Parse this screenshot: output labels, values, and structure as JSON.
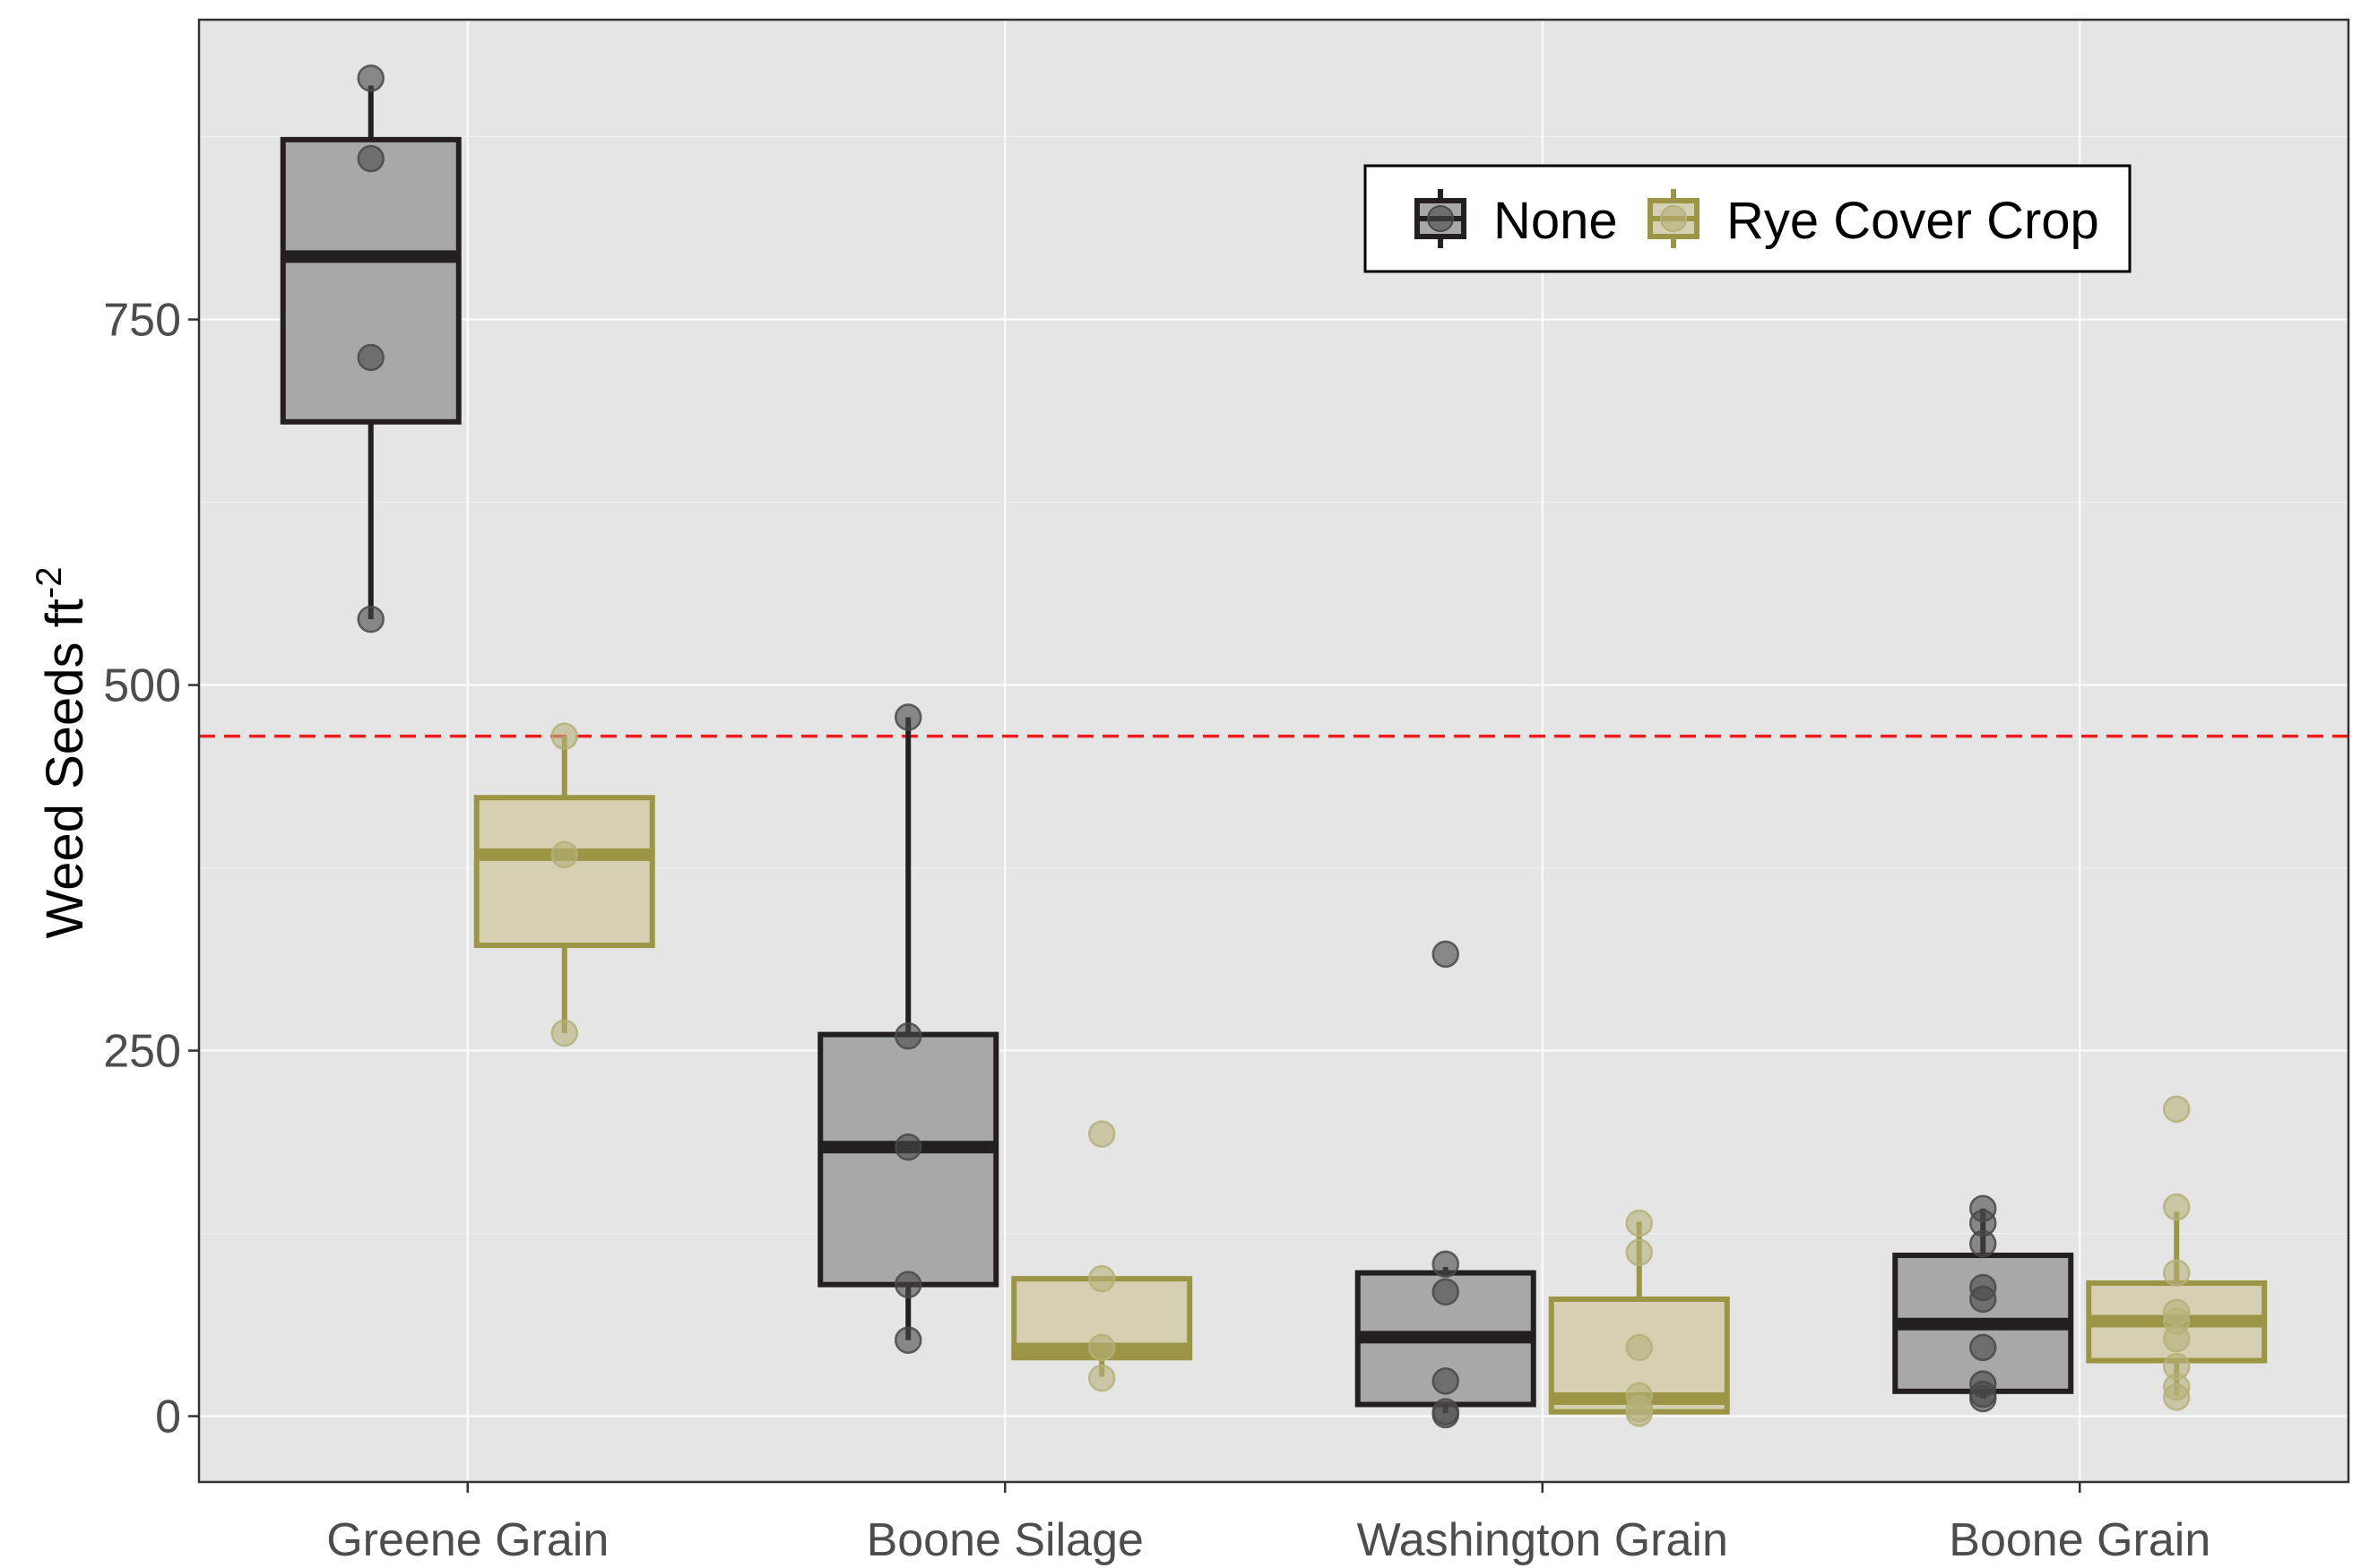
{
  "chart_data": {
    "type": "boxplot",
    "categories": [
      "Greene Grain",
      "Boone Silage",
      "Washington Grain",
      "Boone Grain"
    ],
    "ylabel": "Weed Seeds ft",
    "ylabel_superscript": "-2",
    "xlabel": "",
    "ylim": [
      -45,
      955
    ],
    "yticks": [
      0,
      250,
      500,
      750
    ],
    "reference_line": {
      "y": 465,
      "color": "#ee1c1c",
      "style": "dashed"
    },
    "legend": {
      "placement": "top-right",
      "entries": [
        "None",
        "Rye Cover Crop"
      ]
    },
    "background": "#e5e5e5",
    "grid": true,
    "series": [
      {
        "name": "None",
        "stroke": "#231f20",
        "fill": "#a9a8a8",
        "point_color": "#4a4748",
        "boxes": [
          {
            "category": "Greene Grain",
            "whisker_low": 545,
            "q1": 680,
            "median": 793,
            "q3": 873,
            "whisker_high": 910,
            "points": [
              915,
              860,
              724,
              545
            ]
          },
          {
            "category": "Boone Silage",
            "whisker_low": 52,
            "q1": 90,
            "median": 184,
            "q3": 261,
            "whisker_high": 478,
            "points": [
              478,
              260,
              184,
              90,
              52
            ]
          },
          {
            "category": "Washington Grain",
            "whisker_low": 2,
            "q1": 8,
            "median": 54,
            "q3": 98,
            "whisker_high": 102,
            "points": [
              316,
              104,
              85,
              24,
              3,
              1
            ]
          },
          {
            "category": "Boone Grain",
            "whisker_low": 12,
            "q1": 17,
            "median": 63,
            "q3": 110,
            "whisker_high": 142,
            "points": [
              142,
              132,
              118,
              88,
              80,
              47,
              22,
              15,
              12
            ]
          }
        ]
      },
      {
        "name": "Rye Cover Crop",
        "stroke": "#9c9545",
        "fill": "#d4d0b1",
        "point_color": "#b5b07a",
        "boxes": [
          {
            "category": "Greene Grain",
            "whisker_low": 262,
            "q1": 322,
            "median": 384,
            "q3": 423,
            "whisker_high": 465,
            "points": [
              465,
              384,
              262
            ]
          },
          {
            "category": "Boone Silage",
            "whisker_low": 27,
            "q1": 40,
            "median": 46,
            "q3": 94,
            "whisker_high": 95,
            "points": [
              193,
              94,
              47,
              26
            ]
          },
          {
            "category": "Washington Grain",
            "whisker_low": 2,
            "q1": 3,
            "median": 12,
            "q3": 80,
            "whisker_high": 133,
            "points": [
              132,
              112,
              47,
              14,
              5,
              2
            ]
          },
          {
            "category": "Boone Grain",
            "whisker_low": 14,
            "q1": 38,
            "median": 65,
            "q3": 91,
            "whisker_high": 140,
            "points": [
              210,
              143,
              98,
              71,
              65,
              53,
              34,
              20,
              13
            ]
          }
        ]
      }
    ]
  }
}
